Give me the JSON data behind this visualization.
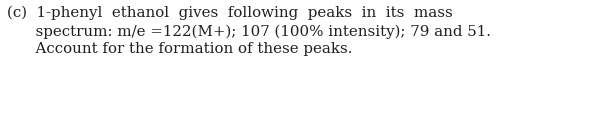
{
  "line1": "(c)  1-phenyl  ethanol  gives  following  peaks  in  its  mass",
  "line2": "      spectrum: m/e =122(M+); 107 (100% intensity); 79 and 51.",
  "line3": "      Account for the formation of these peaks.",
  "background_color": "#ffffff",
  "text_color": "#231f20",
  "font_size": 10.8,
  "fig_width": 6.06,
  "fig_height": 1.17,
  "dpi": 100
}
